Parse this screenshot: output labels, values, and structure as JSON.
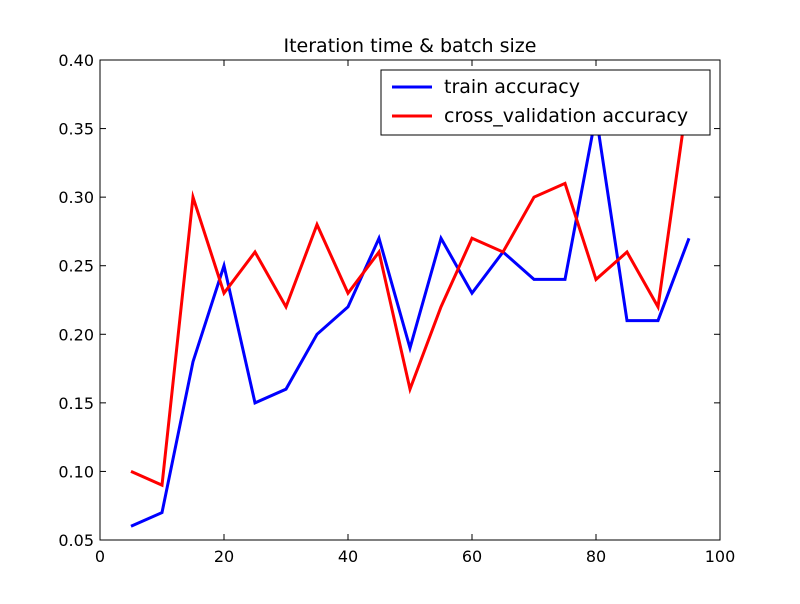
{
  "chart_data": {
    "type": "line",
    "title": "Iteration time & batch size",
    "xlabel": "",
    "ylabel": "",
    "xlim": [
      0,
      100
    ],
    "ylim": [
      0.05,
      0.4
    ],
    "xticks": [
      "0",
      "20",
      "40",
      "60",
      "80",
      "100"
    ],
    "yticks": [
      "0.05",
      "0.10",
      "0.15",
      "0.20",
      "0.25",
      "0.30",
      "0.35",
      "0.40"
    ],
    "grid": false,
    "legend_position": "top-right",
    "x": [
      5,
      10,
      15,
      20,
      25,
      30,
      35,
      40,
      45,
      50,
      55,
      60,
      65,
      70,
      75,
      80,
      85,
      90,
      95
    ],
    "series": [
      {
        "name": "train accuracy",
        "color": "#0000ff",
        "values": [
          0.06,
          0.07,
          0.18,
          0.25,
          0.15,
          0.16,
          0.2,
          0.22,
          0.27,
          0.19,
          0.27,
          0.23,
          0.26,
          0.24,
          0.24,
          0.36,
          0.21,
          0.21,
          0.27
        ]
      },
      {
        "name": "cross_validation accuracy",
        "color": "#ff0000",
        "values": [
          0.1,
          0.09,
          0.3,
          0.23,
          0.26,
          0.22,
          0.28,
          0.23,
          0.26,
          0.16,
          0.22,
          0.27,
          0.26,
          0.3,
          0.31,
          0.24,
          0.26,
          0.22,
          0.38
        ]
      }
    ]
  }
}
